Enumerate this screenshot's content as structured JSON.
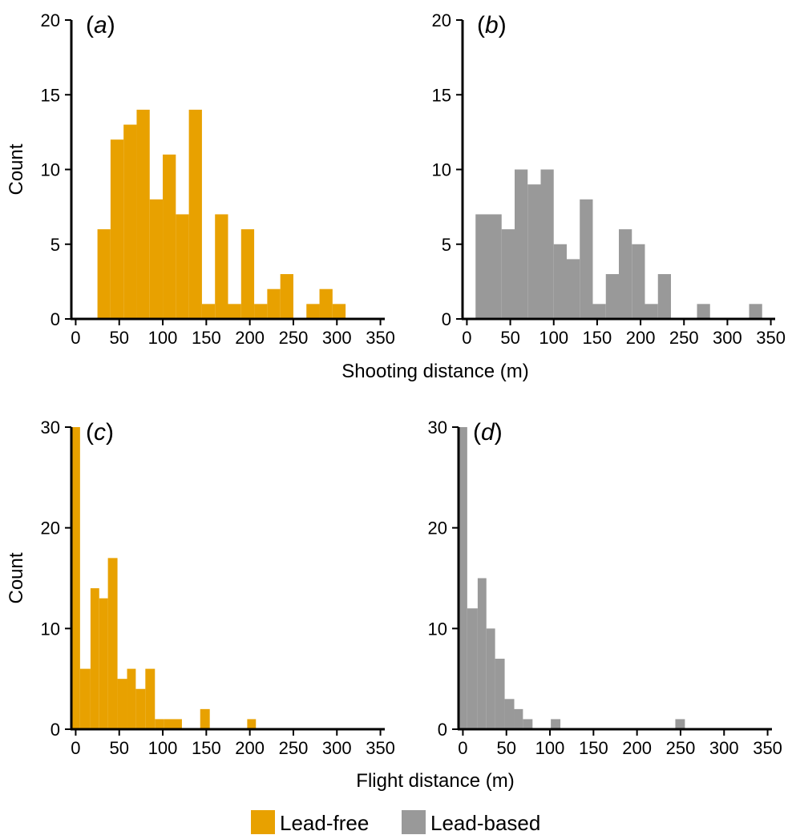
{
  "legend": [
    {
      "label": "Lead-free",
      "color": "#E8A100"
    },
    {
      "label": "Lead-based",
      "color": "#999999"
    }
  ],
  "xlabels": {
    "top": "Shooting distance (m)",
    "bottom": "Flight distance (m)"
  },
  "chart_data": [
    {
      "type": "bar",
      "panel": "(a)",
      "panel_letter": "a",
      "series_name": "Lead-free",
      "color": "#E8A100",
      "ylabel": "Count",
      "xlabel": "Shooting distance (m)",
      "xlim": [
        -5,
        355
      ],
      "ylim": [
        0,
        20
      ],
      "xticks": [
        0,
        50,
        100,
        150,
        200,
        250,
        300,
        350
      ],
      "yticks": [
        0,
        5,
        10,
        15,
        20
      ],
      "bins": [
        {
          "x0": 25,
          "x1": 40,
          "count": 6
        },
        {
          "x0": 40,
          "x1": 55,
          "count": 12
        },
        {
          "x0": 55,
          "x1": 70,
          "count": 13
        },
        {
          "x0": 70,
          "x1": 85,
          "count": 14
        },
        {
          "x0": 85,
          "x1": 100,
          "count": 8
        },
        {
          "x0": 100,
          "x1": 115,
          "count": 11
        },
        {
          "x0": 115,
          "x1": 130,
          "count": 7
        },
        {
          "x0": 130,
          "x1": 145,
          "count": 14
        },
        {
          "x0": 145,
          "x1": 160,
          "count": 1
        },
        {
          "x0": 160,
          "x1": 175,
          "count": 7
        },
        {
          "x0": 175,
          "x1": 190,
          "count": 1
        },
        {
          "x0": 190,
          "x1": 205,
          "count": 6
        },
        {
          "x0": 205,
          "x1": 220,
          "count": 1
        },
        {
          "x0": 220,
          "x1": 235,
          "count": 2
        },
        {
          "x0": 235,
          "x1": 250,
          "count": 3
        },
        {
          "x0": 265,
          "x1": 280,
          "count": 1
        },
        {
          "x0": 280,
          "x1": 295,
          "count": 2
        },
        {
          "x0": 295,
          "x1": 310,
          "count": 1
        }
      ]
    },
    {
      "type": "bar",
      "panel": "(b)",
      "panel_letter": "b",
      "series_name": "Lead-based",
      "color": "#999999",
      "ylabel": "",
      "xlabel": "Shooting distance (m)",
      "xlim": [
        -5,
        355
      ],
      "ylim": [
        0,
        20
      ],
      "xticks": [
        0,
        50,
        100,
        150,
        200,
        250,
        300,
        350
      ],
      "yticks": [
        0,
        5,
        10,
        15,
        20
      ],
      "bins": [
        {
          "x0": 10,
          "x1": 25,
          "count": 7
        },
        {
          "x0": 25,
          "x1": 40,
          "count": 7
        },
        {
          "x0": 40,
          "x1": 55,
          "count": 6
        },
        {
          "x0": 55,
          "x1": 70,
          "count": 10
        },
        {
          "x0": 70,
          "x1": 85,
          "count": 9
        },
        {
          "x0": 85,
          "x1": 100,
          "count": 10
        },
        {
          "x0": 100,
          "x1": 115,
          "count": 5
        },
        {
          "x0": 115,
          "x1": 130,
          "count": 4
        },
        {
          "x0": 130,
          "x1": 145,
          "count": 8
        },
        {
          "x0": 145,
          "x1": 160,
          "count": 1
        },
        {
          "x0": 160,
          "x1": 175,
          "count": 3
        },
        {
          "x0": 175,
          "x1": 190,
          "count": 6
        },
        {
          "x0": 190,
          "x1": 205,
          "count": 5
        },
        {
          "x0": 205,
          "x1": 220,
          "count": 1
        },
        {
          "x0": 220,
          "x1": 235,
          "count": 3
        },
        {
          "x0": 265,
          "x1": 280,
          "count": 1
        },
        {
          "x0": 325,
          "x1": 340,
          "count": 1
        }
      ]
    },
    {
      "type": "bar",
      "panel": "(c)",
      "panel_letter": "c",
      "series_name": "Lead-free",
      "color": "#E8A100",
      "ylabel": "Count",
      "xlabel": "Flight distance (m)",
      "xlim": [
        -5,
        355
      ],
      "ylim": [
        0,
        30
      ],
      "xticks": [
        0,
        50,
        100,
        150,
        200,
        250,
        300,
        350
      ],
      "yticks": [
        0,
        10,
        20,
        30
      ],
      "bins": [
        {
          "x0": -5,
          "x1": 5,
          "count": 30
        },
        {
          "x0": 5,
          "x1": 17,
          "count": 6
        },
        {
          "x0": 17,
          "x1": 27,
          "count": 14
        },
        {
          "x0": 27,
          "x1": 37,
          "count": 13
        },
        {
          "x0": 37,
          "x1": 48,
          "count": 17
        },
        {
          "x0": 48,
          "x1": 59,
          "count": 5
        },
        {
          "x0": 59,
          "x1": 69,
          "count": 6
        },
        {
          "x0": 69,
          "x1": 80,
          "count": 4
        },
        {
          "x0": 80,
          "x1": 91,
          "count": 6
        },
        {
          "x0": 91,
          "x1": 101,
          "count": 1
        },
        {
          "x0": 101,
          "x1": 122,
          "count": 1
        },
        {
          "x0": 143,
          "x1": 154,
          "count": 2
        },
        {
          "x0": 197,
          "x1": 207,
          "count": 1
        }
      ]
    },
    {
      "type": "bar",
      "panel": "(d)",
      "panel_letter": "d",
      "series_name": "Lead-based",
      "color": "#999999",
      "ylabel": "",
      "xlabel": "Flight distance (m)",
      "xlim": [
        -5,
        355
      ],
      "ylim": [
        0,
        30
      ],
      "xticks": [
        0,
        50,
        100,
        150,
        200,
        250,
        300,
        350
      ],
      "yticks": [
        0,
        10,
        20,
        30
      ],
      "bins": [
        {
          "x0": -5,
          "x1": 5,
          "count": 30
        },
        {
          "x0": 5,
          "x1": 17,
          "count": 12
        },
        {
          "x0": 17,
          "x1": 27,
          "count": 15
        },
        {
          "x0": 27,
          "x1": 37,
          "count": 10
        },
        {
          "x0": 37,
          "x1": 48,
          "count": 7
        },
        {
          "x0": 48,
          "x1": 59,
          "count": 3
        },
        {
          "x0": 59,
          "x1": 69,
          "count": 2
        },
        {
          "x0": 69,
          "x1": 80,
          "count": 1
        },
        {
          "x0": 101,
          "x1": 112,
          "count": 1
        },
        {
          "x0": 244,
          "x1": 255,
          "count": 1
        }
      ]
    }
  ]
}
